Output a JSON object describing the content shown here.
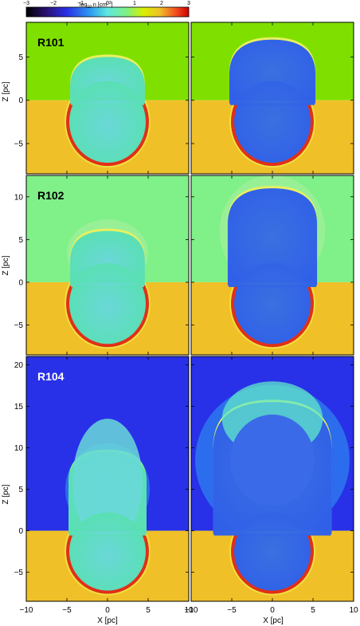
{
  "colorbar": {
    "label_prefix": "log",
    "label_sub": "10",
    "label_suffix": " n [cm",
    "label_sup": "−3",
    "label_end": "]",
    "ticks": [
      "−3",
      "−2",
      "−1",
      "0",
      "1",
      "2",
      "3"
    ],
    "range": [
      -3,
      3
    ]
  },
  "panels": [
    {
      "run": "R101",
      "label_color": "#000000",
      "ambient_top": "#7fe000",
      "ambient_bottom": "#f0c028",
      "z_ticks": [
        "5",
        "0",
        "−5"
      ],
      "z_range": [
        -8.5,
        9
      ]
    },
    {
      "run": "R102",
      "label_color": "#000000",
      "ambient_top": "#80f088",
      "ambient_bottom": "#f0c028",
      "z_ticks": [
        "10",
        "5",
        "0",
        "−5"
      ],
      "z_range": [
        -8.5,
        12.5
      ]
    },
    {
      "run": "R104",
      "label_color": "#ffffff",
      "ambient_top": "#2830e8",
      "ambient_bottom": "#f0c028",
      "z_ticks": [
        "20",
        "15",
        "10",
        "5",
        "0",
        "−5"
      ],
      "z_range": [
        -8.5,
        21
      ]
    }
  ],
  "axes": {
    "x_ticks": [
      "−10",
      "−5",
      "0",
      "5",
      "10"
    ],
    "x_range": [
      -10,
      10
    ],
    "xlabel": "X [pc]",
    "ylabel": "Z [pc]"
  },
  "colors": {
    "bubble_interior": "#5ae0c8",
    "bubble_late": "#3a6ae8",
    "shell": "#e03018",
    "shell_edge": "#f0e040"
  }
}
